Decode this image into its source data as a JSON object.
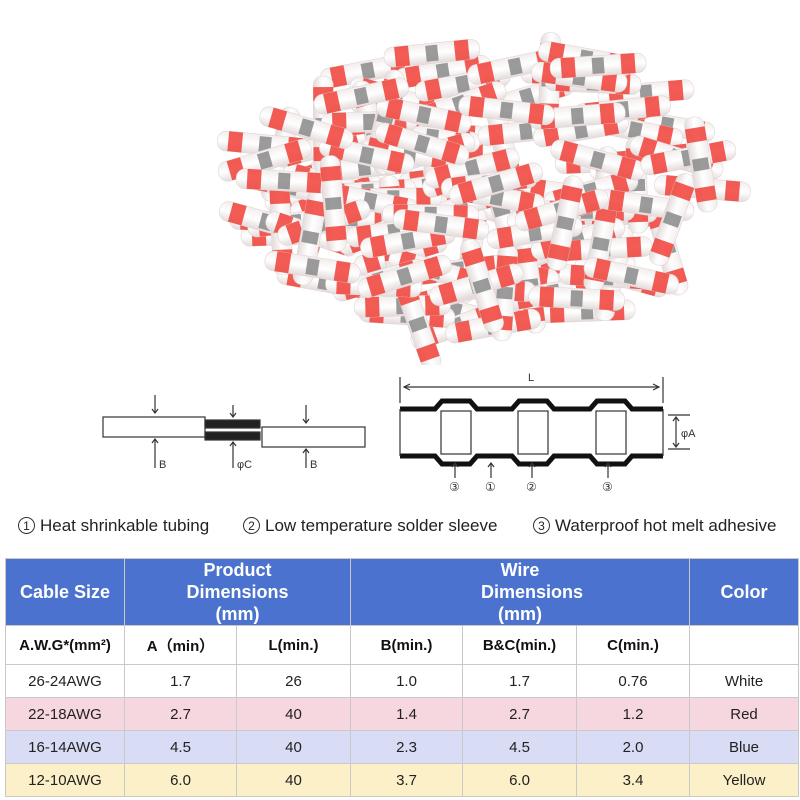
{
  "legend": [
    {
      "num": "1",
      "text": "Heat shrinkable tubing"
    },
    {
      "num": "2",
      "text": "Low temperature solder sleeve"
    },
    {
      "num": "3",
      "text": "Waterproof hot melt adhesive"
    }
  ],
  "diagram_left": {
    "label_b1": "B",
    "label_c": "φC",
    "label_b2": "B"
  },
  "diagram_right": {
    "label_l": "L",
    "label_a": "φA",
    "marks": [
      "③",
      "①",
      "②",
      "③"
    ]
  },
  "table": {
    "headers": [
      "Cable Size",
      "Product Dimensions (mm)",
      "Wire Dimensions (mm)",
      "Color"
    ],
    "subheaders": [
      "A.W.G*(mm²)",
      "A（min）",
      "L(min.)",
      "B(min.)",
      "B&C(min.)",
      "C(min.)",
      ""
    ],
    "rows": [
      [
        "26-24AWG",
        "1.7",
        "26",
        "1.0",
        "1.7",
        "0.76",
        "White"
      ],
      [
        "22-18AWG",
        "2.7",
        "40",
        "1.4",
        "2.7",
        "1.2",
        "Red"
      ],
      [
        "16-14AWG",
        "4.5",
        "40",
        "2.3",
        "4.5",
        "2.0",
        "Blue"
      ],
      [
        "12-10AWG",
        "6.0",
        "40",
        "3.7",
        "6.0",
        "3.4",
        "Yellow"
      ]
    ]
  },
  "colors": {
    "header": "#4b72cf",
    "accent_red": "#f0463c",
    "row_red": "#f7d7df",
    "row_blue": "#d8dcf4",
    "row_yellow": "#fbf0c7"
  }
}
